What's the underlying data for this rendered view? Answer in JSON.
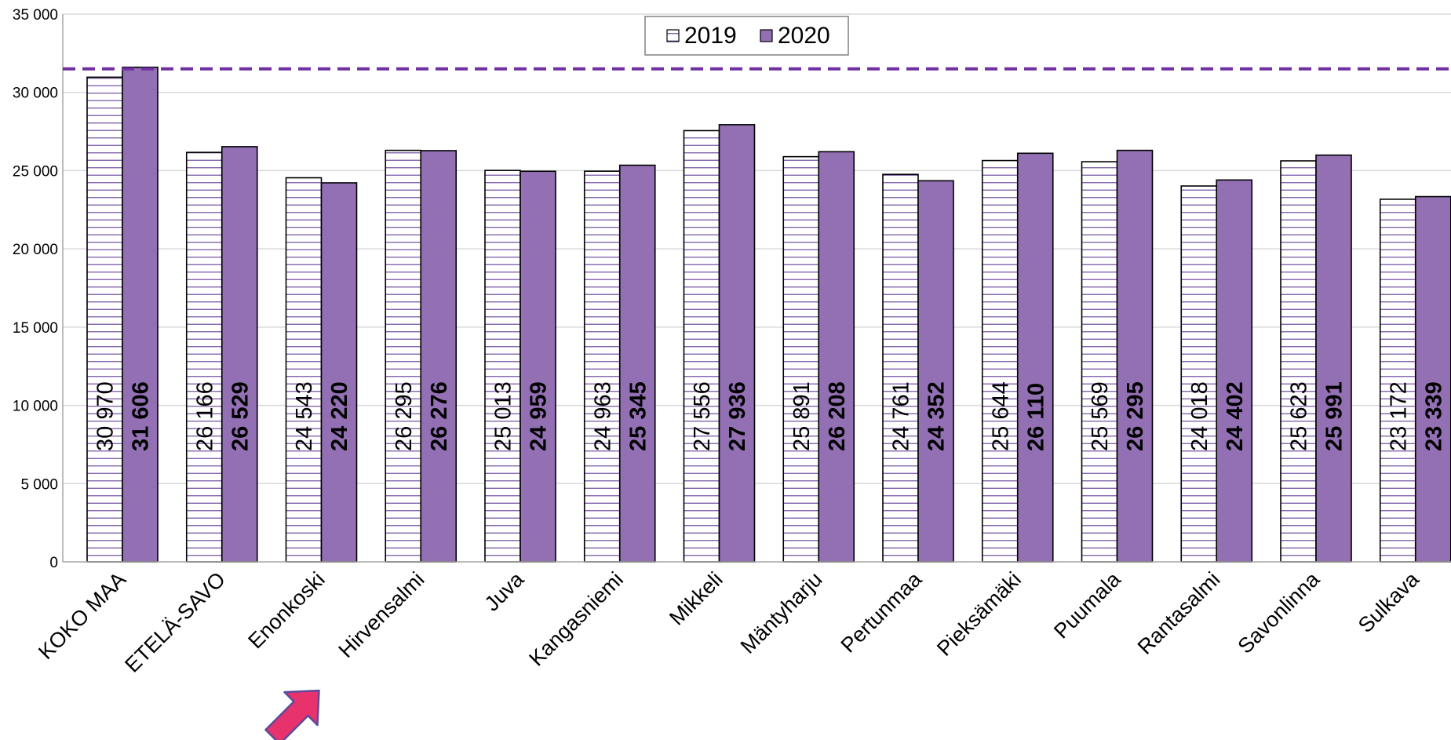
{
  "chart_data": {
    "type": "bar",
    "title": "",
    "xlabel": "",
    "ylabel": "",
    "ylim": [
      0,
      35000
    ],
    "yticks": [
      0,
      5000,
      10000,
      15000,
      20000,
      25000,
      30000,
      35000
    ],
    "ytick_labels": [
      "0",
      "5 000",
      "10 000",
      "15 000",
      "20 000",
      "25 000",
      "30 000",
      "35 000"
    ],
    "grid": true,
    "legend_position": "top-center",
    "categories": [
      "KOKO MAA",
      "ETELÄ-SAVO",
      "Enonkoski",
      "Hirvensalmi",
      "Juva",
      "Kangasniemi",
      "Mikkeli",
      "Mäntyharju",
      "Pertunmaa",
      "Pieksämäki",
      "Puumala",
      "Rantasalmi",
      "Savonlinna",
      "Sulkava"
    ],
    "series": [
      {
        "name": "2019",
        "values": [
          30970,
          26166,
          24543,
          26295,
          25013,
          24963,
          27556,
          25891,
          24761,
          25644,
          25569,
          24018,
          25623,
          23172
        ],
        "labels": [
          "30 970",
          "26 166",
          "24 543",
          "26 295",
          "25 013",
          "24 963",
          "27 556",
          "25 891",
          "24 761",
          "25 644",
          "25 569",
          "24 018",
          "25 623",
          "23 172"
        ]
      },
      {
        "name": "2020",
        "values": [
          31606,
          26529,
          24220,
          26276,
          24959,
          25345,
          27936,
          26208,
          24352,
          26110,
          26295,
          24402,
          25991,
          23339
        ],
        "labels": [
          "31 606",
          "26 529",
          "24 220",
          "26 276",
          "24 959",
          "25 345",
          "27 936",
          "26 208",
          "24 352",
          "26 110",
          "26 295",
          "24 402",
          "25 991",
          "23 339"
        ]
      }
    ],
    "reference_line": {
      "value": 31500,
      "style": "dashed"
    },
    "highlight_arrow": {
      "points_at": "Enonkoski"
    }
  },
  "colors": {
    "series_2019_fill": "#ffffff",
    "series_2019_hatch": "#7b5aa6",
    "series_2020_fill": "#9370b4",
    "reference_line": "#7030a0",
    "grid": "#d9d9d9",
    "arrow_fill": "#e8326e",
    "arrow_stroke": "#5a4a9a"
  }
}
